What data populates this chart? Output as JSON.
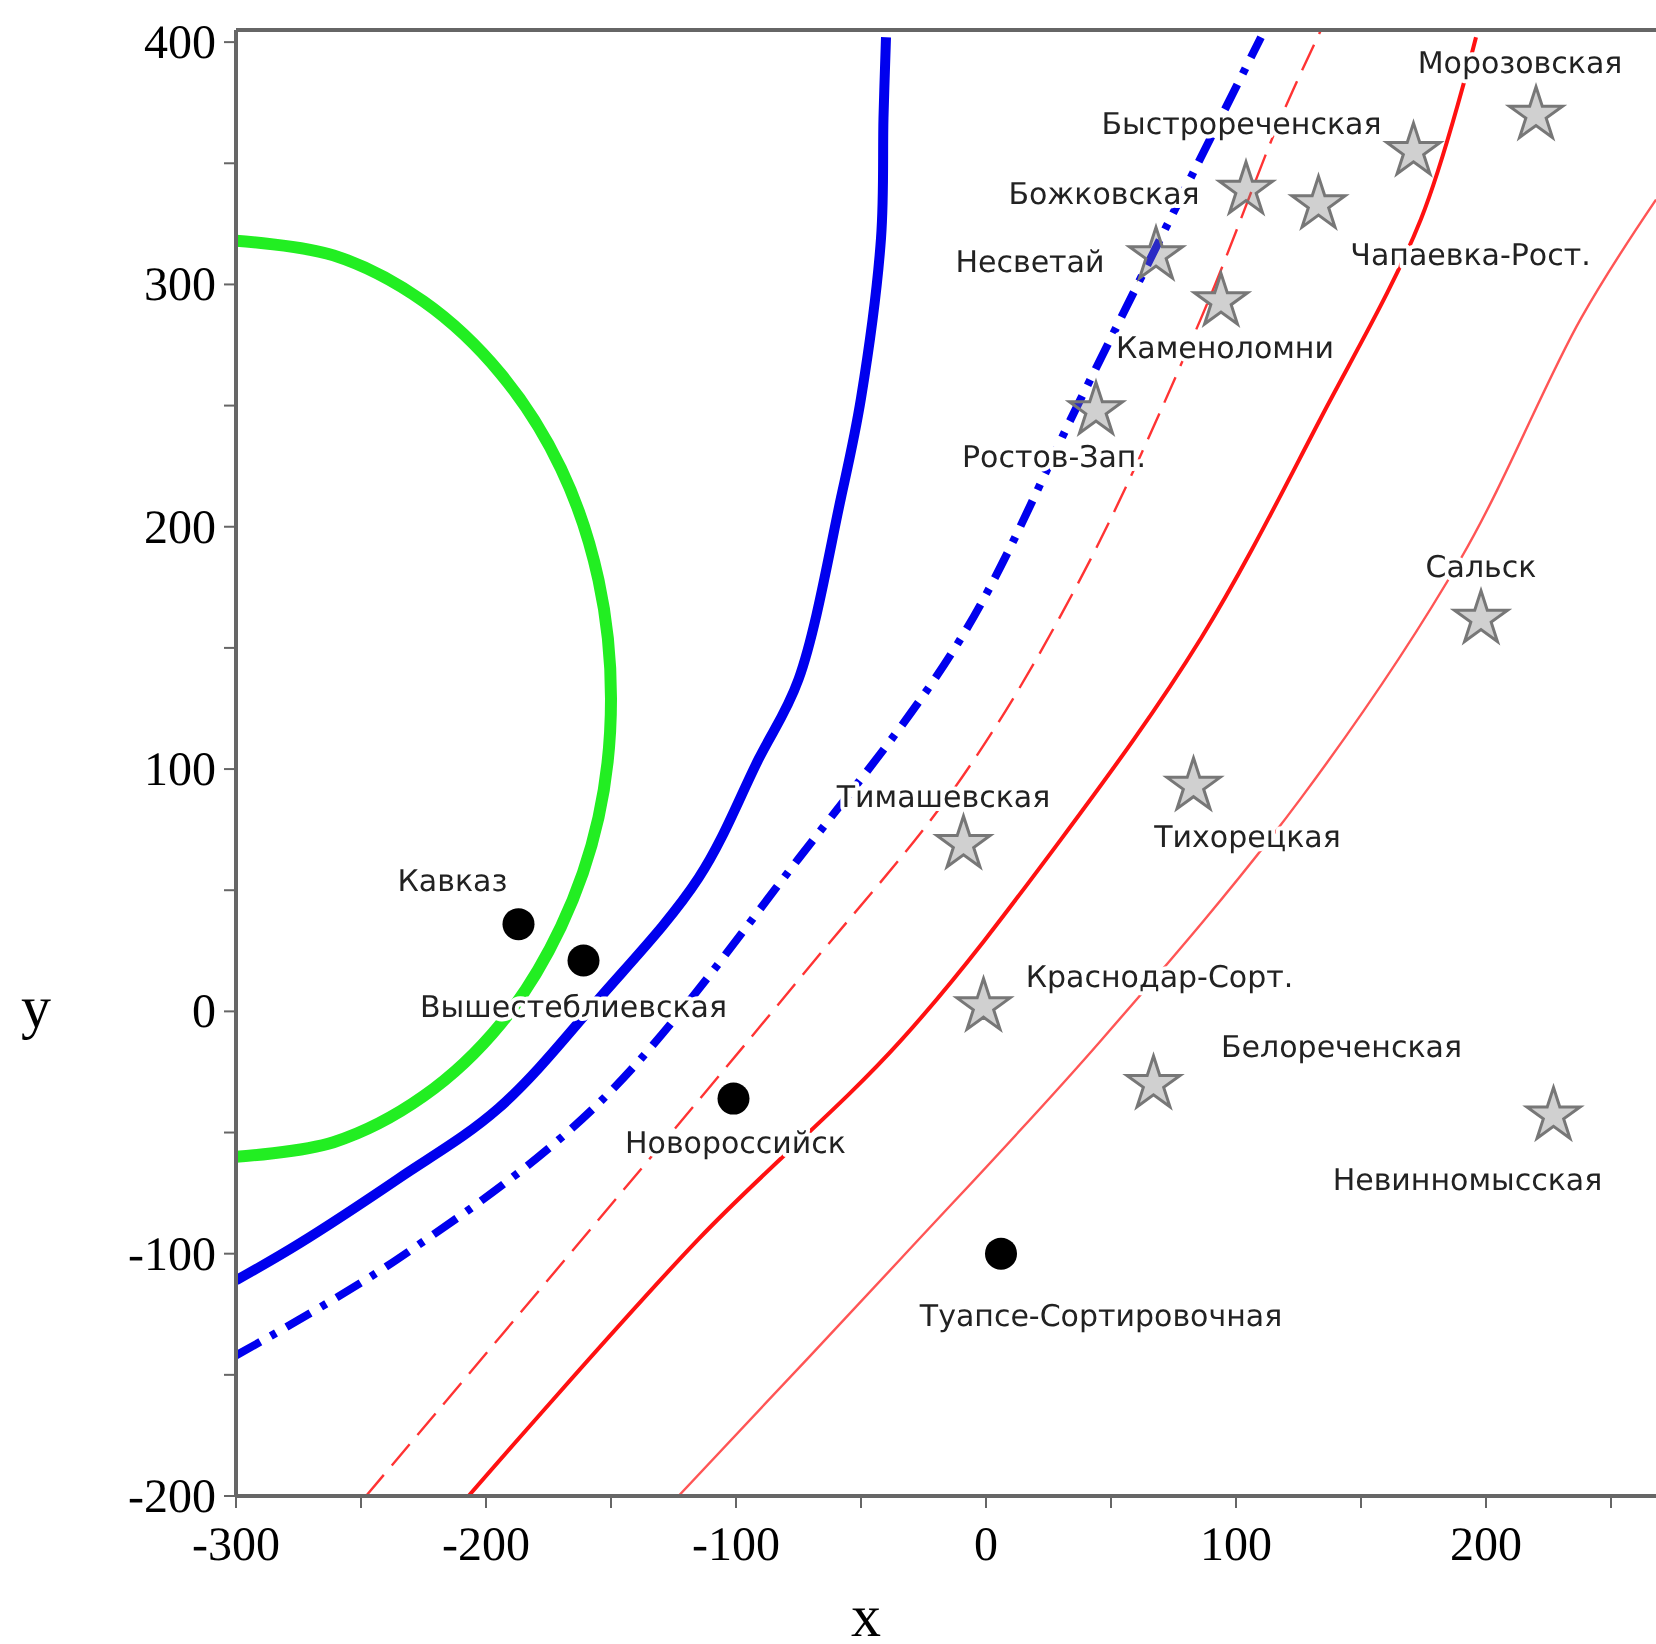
{
  "chart_data": {
    "type": "line",
    "xlabel": "x",
    "ylabel": "y",
    "xlim": [
      -300,
      268
    ],
    "ylim": [
      -200,
      405
    ],
    "xticks": [
      -300,
      {
        "value": -250,
        "label": null
      },
      -200,
      {
        "value": -150,
        "label": null
      },
      -100,
      {
        "value": -50,
        "label": null
      },
      0,
      {
        "value": 50,
        "label": null
      },
      100,
      {
        "value": 150,
        "label": null
      },
      200,
      {
        "value": 250,
        "label": null
      }
    ],
    "yticks": [
      -200,
      {
        "value": -150,
        "label": null
      },
      -100,
      {
        "value": -50,
        "label": null
      },
      0,
      {
        "value": 50,
        "label": null
      },
      100,
      {
        "value": 150,
        "label": null
      },
      200,
      {
        "value": 250,
        "label": null
      },
      300,
      {
        "value": 350,
        "label": null
      },
      400
    ],
    "grid": false,
    "series": [
      {
        "type": "line",
        "color": "#22ee22",
        "line_style": "solid",
        "marker": "none",
        "x": [
          -300,
          -261,
          -225,
          -194,
          -170,
          -155,
          -150,
          -155,
          -170,
          -194,
          -225,
          -261,
          -300
        ],
        "values": [
          318,
          312,
          293,
          263,
          224,
          178,
          129,
          80,
          35,
          -5,
          -35,
          -54,
          -60
        ]
      },
      {
        "type": "line",
        "color": "#0000ee",
        "line_style": "solid",
        "marker": "none",
        "x": [
          -300,
          -275,
          -235,
          -195,
          -155,
          -115,
          -91,
          -75,
          -58,
          -50,
          -42,
          -41,
          -40
        ],
        "values": [
          -111,
          -96,
          -69,
          -40,
          5,
          55,
          104,
          137,
          212,
          253,
          319,
          369,
          402
        ]
      },
      {
        "type": "line",
        "color": "#0000ee",
        "line_style": "dashdot",
        "marker": "none",
        "x": [
          -300,
          -235,
          -155,
          -75,
          -10,
          38,
          78,
          110
        ],
        "values": [
          -142,
          -102,
          -38,
          63,
          154,
          253,
          336,
          402
        ]
      },
      {
        "type": "line",
        "color": "#ff3333",
        "line_style": "dashed",
        "marker": "none",
        "x": [
          -248,
          -155,
          -75,
          -10,
          38,
          86,
          118,
          134
        ],
        "values": [
          -200,
          -86,
          13,
          96,
          179,
          286,
          369,
          405
        ]
      },
      {
        "type": "line",
        "color": "#ff1111",
        "line_style": "solid",
        "marker": "none",
        "x": [
          -207,
          -115,
          -34,
          30,
          86,
          134,
          174,
          196
        ],
        "values": [
          -200,
          -94,
          -12,
          71,
          154,
          245,
          327,
          402
        ]
      },
      {
        "type": "line",
        "color": "#ff5555",
        "line_style": "solid",
        "marker": "none",
        "x": [
          -123,
          -34,
          46,
          126,
          190,
          238,
          268
        ],
        "values": [
          -200,
          -102,
          -12,
          88,
          187,
          286,
          335
        ]
      },
      {
        "type": "scatter",
        "color": "#777777",
        "marker": "star",
        "x": [
          220,
          171,
          104,
          133,
          68,
          94,
          44,
          198,
          83,
          -9,
          -1,
          67,
          227
        ],
        "values": [
          370,
          355,
          339,
          333,
          312,
          293,
          248,
          162,
          93,
          69,
          2,
          -30,
          -43
        ]
      },
      {
        "type": "scatter",
        "color": "#000000",
        "marker": "circle",
        "x": [
          -187,
          -161,
          -101,
          6
        ],
        "values": [
          36,
          21,
          -36,
          -100
        ]
      }
    ],
    "annotations": [
      {
        "text": "Морозовская",
        "x": 220,
        "y": 370
      },
      {
        "text": "Быстрореченская",
        "x": 171,
        "y": 355
      },
      {
        "text": "Божковская",
        "x": 104,
        "y": 339
      },
      {
        "text": "Чапаевка-Рост.",
        "x": 133,
        "y": 333
      },
      {
        "text": "Несветай",
        "x": 68,
        "y": 312
      },
      {
        "text": "Каменоломни",
        "x": 94,
        "y": 293
      },
      {
        "text": "Ростов-Зап.",
        "x": 44,
        "y": 248
      },
      {
        "text": "Сальск",
        "x": 198,
        "y": 162
      },
      {
        "text": "Тихорецкая",
        "x": 83,
        "y": 93
      },
      {
        "text": "Тимашевская",
        "x": -9,
        "y": 69
      },
      {
        "text": "Краснодар-Сорт.",
        "x": -1,
        "y": 2
      },
      {
        "text": "Белореченская",
        "x": 67,
        "y": -30
      },
      {
        "text": "Невинномысская",
        "x": 227,
        "y": -43
      },
      {
        "text": "Кавказ",
        "x": -187,
        "y": 36
      },
      {
        "text": "Вышестеблиевская",
        "x": -161,
        "y": 21
      },
      {
        "text": "Новороссийск",
        "x": -101,
        "y": -36
      },
      {
        "text": "Туапсе-Сортировочная",
        "x": 6,
        "y": -100
      }
    ]
  }
}
